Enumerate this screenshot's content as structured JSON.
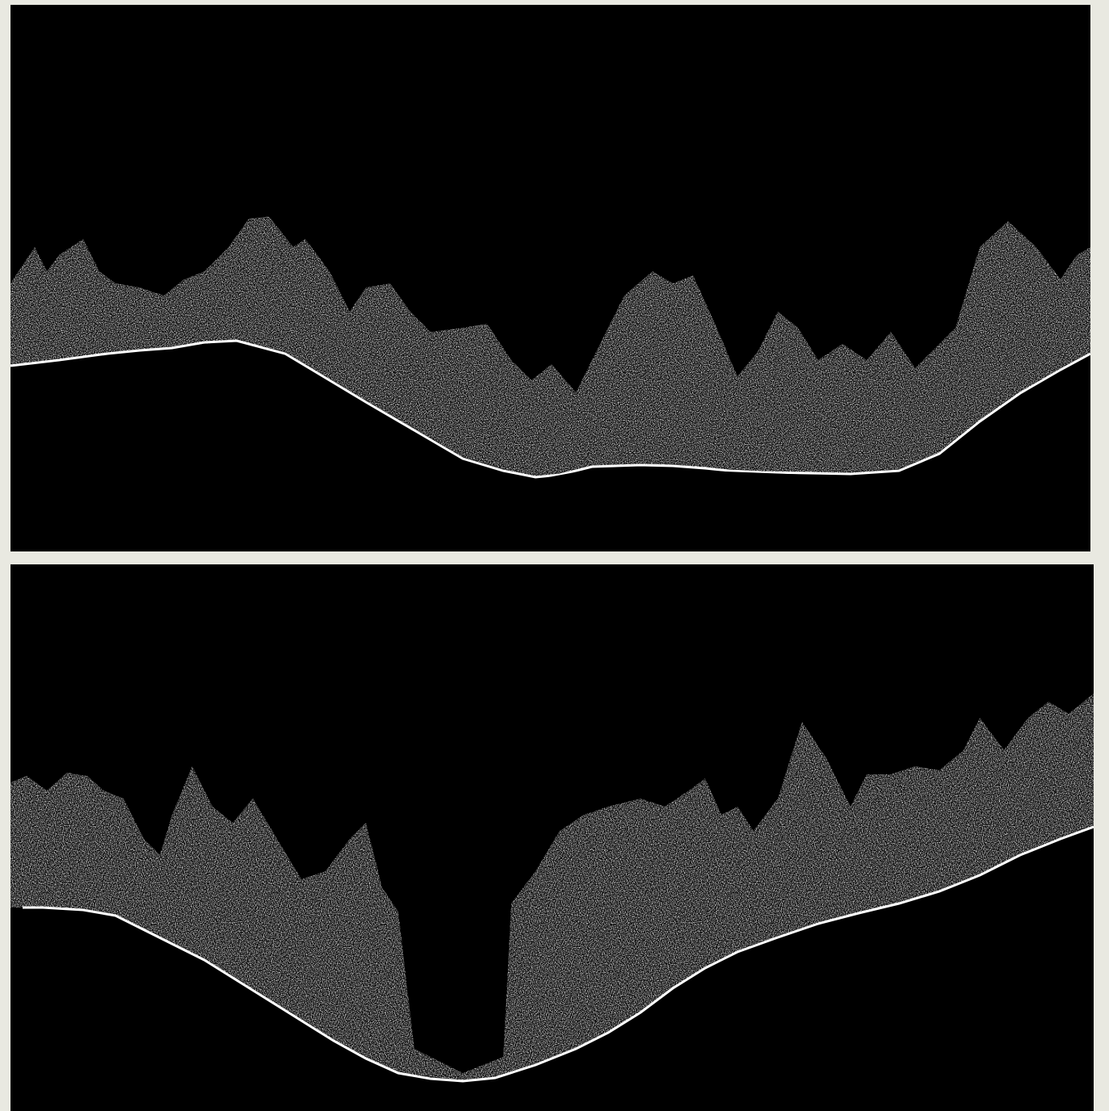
{
  "background_color": "#e9e9e1",
  "panel_color": "#000000",
  "stroke_color": "#ffffff",
  "panels": [
    {
      "id": "top",
      "subject": "forested-ridge-silhouette"
    },
    {
      "id": "bottom",
      "subject": "forested-valley-silhouette"
    }
  ]
}
